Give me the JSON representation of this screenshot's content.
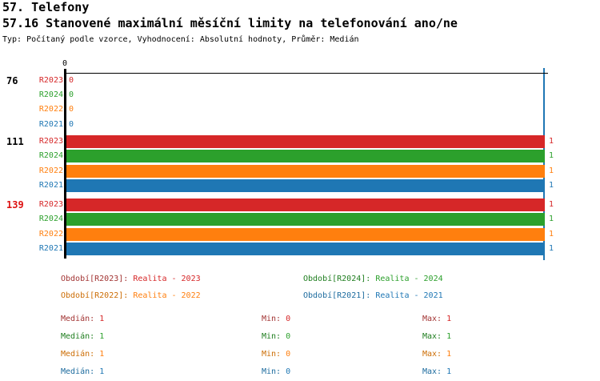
{
  "header": {
    "title1": "57. Telefony",
    "title2": "57.16 Stanovené maximální měsíční limity na telefonování ano/ne",
    "subtitle": "Typ: Počítaný podle vzorce, Vyhodnocení: Absolutní hodnoty, Průměr: Medián"
  },
  "chart_data": {
    "type": "bar",
    "orientation": "horizontal",
    "title": "57.16 Stanovené maximální měsíční limity na telefonování ano/ne",
    "xlabel": "",
    "ylabel": "",
    "xlim": [
      0,
      1
    ],
    "x_axis_ticks": [
      {
        "value": 0,
        "label": "0"
      }
    ],
    "grid": false,
    "median_marker": {
      "value": 1,
      "color": "#1f77b4"
    },
    "categories": [
      "76",
      "111",
      "139"
    ],
    "category_label_colors": [
      "#000000",
      "#000000",
      "#dd1111"
    ],
    "series": [
      {
        "name": "R2023",
        "color": "#d62728",
        "values": [
          0,
          1,
          1
        ]
      },
      {
        "name": "R2024",
        "color": "#2ca02c",
        "values": [
          0,
          1,
          1
        ]
      },
      {
        "name": "R2022",
        "color": "#ff7f0e",
        "values": [
          0,
          1,
          1
        ]
      },
      {
        "name": "R2021",
        "color": "#1f77b4",
        "values": [
          0,
          1,
          1
        ]
      }
    ],
    "value_labels_shown": true,
    "legend_position": "bottom"
  },
  "legend": {
    "items": [
      {
        "label": "Období[R2023]:",
        "value": "Realita - 2023",
        "label_color": "#a23433",
        "value_color": "#d62728",
        "col": 0,
        "row": 0
      },
      {
        "label": "Období[R2024]:",
        "value": "Realita - 2024",
        "label_color": "#1e7d1e",
        "value_color": "#2ca02c",
        "col": 1,
        "row": 0
      },
      {
        "label": "Období[R2022]:",
        "value": "Realita - 2022",
        "label_color": "#cc6d05",
        "value_color": "#ff7f0e",
        "col": 0,
        "row": 1
      },
      {
        "label": "Období[R2021]:",
        "value": "Realita - 2021",
        "label_color": "#1c6b9e",
        "value_color": "#1f77b4",
        "col": 1,
        "row": 1
      }
    ]
  },
  "stats": {
    "rows": [
      {
        "period": "R2023",
        "label_color": "#a23433",
        "value_color": "#d62728",
        "median_label": "Medián:",
        "median_value": "1",
        "min_label": "Min:",
        "min_value": "0",
        "max_label": "Max:",
        "max_value": "1"
      },
      {
        "period": "R2024",
        "label_color": "#1e7d1e",
        "value_color": "#2ca02c",
        "median_label": "Medián:",
        "median_value": "1",
        "min_label": "Min:",
        "min_value": "0",
        "max_label": "Max:",
        "max_value": "1"
      },
      {
        "period": "R2022",
        "label_color": "#cc6d05",
        "value_color": "#ff7f0e",
        "median_label": "Medián:",
        "median_value": "1",
        "min_label": "Min:",
        "min_value": "0",
        "max_label": "Max:",
        "max_value": "1"
      },
      {
        "period": "R2021",
        "label_color": "#1c6b9e",
        "value_color": "#1f77b4",
        "median_label": "Medián:",
        "median_value": "1",
        "min_label": "Min:",
        "min_value": "0",
        "max_label": "Max:",
        "max_value": "1"
      }
    ]
  }
}
